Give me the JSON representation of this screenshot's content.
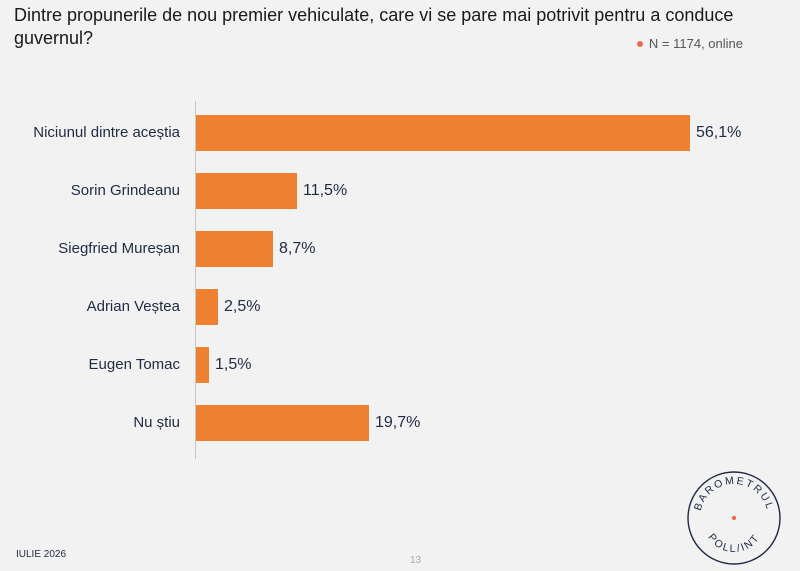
{
  "header": {
    "title": "Dintre propunerile de nou premier vehiculate, care vi se pare mai potrivit pentru a conduce guvernul?",
    "sample": "N = 1174, online"
  },
  "colors": {
    "bar": "#ee8032",
    "accent_dot": "#ee6a4a",
    "text": "#1f2a44"
  },
  "chart_data": {
    "type": "bar",
    "orientation": "horizontal",
    "categories": [
      "Niciunul dintre aceștia",
      "Sorin Grindeanu",
      "Siegfried Mureșan",
      "Adrian Veștea",
      "Eugen Tomac",
      "Nu știu"
    ],
    "values": [
      56.1,
      11.5,
      8.7,
      2.5,
      1.5,
      19.7
    ],
    "value_labels": [
      "56,1%",
      "11,5%",
      "8,7%",
      "2,5%",
      "1,5%",
      "19,7%"
    ],
    "unit": "%",
    "xlim": [
      0,
      56.1
    ],
    "grid": false,
    "legend": "none"
  },
  "footer": {
    "date": "IULIE 2026",
    "page": "13"
  },
  "logo": {
    "top_text": "BAROMETRUL",
    "bottom_text": "POLL/INT"
  }
}
